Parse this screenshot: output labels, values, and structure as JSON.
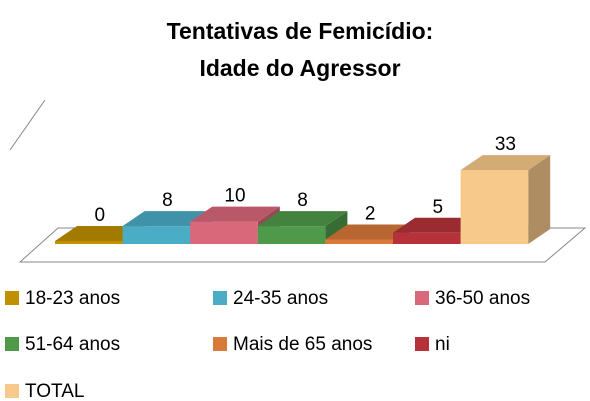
{
  "chart_data": {
    "type": "bar3d",
    "title": [
      "Tentativas de Femicídio:",
      "Idade do Agressor"
    ],
    "series": [
      {
        "name": "18-23 anos",
        "color": "#c09000",
        "values": [
          0
        ]
      },
      {
        "name": "24-35 anos",
        "color": "#4bacc6",
        "values": [
          8
        ]
      },
      {
        "name": "36-50 anos",
        "color": "#d9687a",
        "values": [
          10
        ]
      },
      {
        "name": "51-64 anos",
        "color": "#4f9a4a",
        "values": [
          8
        ]
      },
      {
        "name": "Mais de 65 anos",
        "color": "#d9793a",
        "values": [
          2
        ]
      },
      {
        "name": "ni",
        "color": "#b5323a",
        "values": [
          5
        ]
      },
      {
        "name": "TOTAL",
        "color": "#f7c98a",
        "values": [
          33
        ]
      }
    ]
  }
}
